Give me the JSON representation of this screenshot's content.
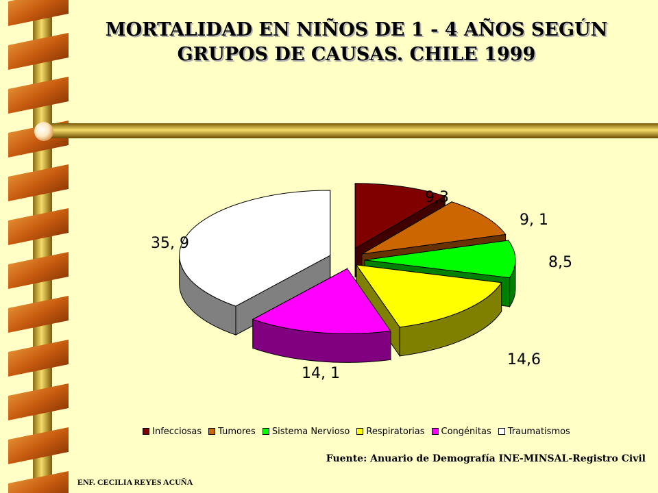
{
  "title": {
    "line1": "MORTALIDAD EN NIÑOS DE 1 - 4 AÑOS SEGÚN",
    "line2": "GRUPOS DE CAUSAS. CHILE 1999"
  },
  "chart_data": {
    "type": "pie",
    "title": "MORTALIDAD EN NIÑOS DE 1 - 4 AÑOS SEGÚN GRUPOS DE CAUSAS. CHILE 1999",
    "categories": [
      "Infecciosas",
      "Tumores",
      "Sistema Nervioso",
      "Respiratorias",
      "Congénitas",
      "Traumatismos"
    ],
    "values": [
      9.3,
      9.1,
      8.5,
      14.6,
      14.1,
      35.9
    ],
    "data_labels": [
      "9,3",
      "9, 1",
      "8,5",
      "14,6",
      "14, 1",
      "35, 9"
    ],
    "colors": [
      "#800000",
      "#cc6600",
      "#00ff00",
      "#ffff00",
      "#ff00ff",
      "#ffffff"
    ],
    "side_colors": [
      "#400000",
      "#663300",
      "#008000",
      "#808000",
      "#800080",
      "#808080"
    ],
    "legend_position": "bottom",
    "style": "3d-exploded"
  },
  "legend": {
    "items": [
      "Infecciosas",
      "Tumores",
      "Sistema Nervioso",
      "Respiratorias",
      "Congénitas",
      "Traumatismos"
    ]
  },
  "source": "Fuente: Anuario de Demografía INE-MINSAL-Registro Civil",
  "author": "ENF. CECILIA REYES ACUÑA"
}
